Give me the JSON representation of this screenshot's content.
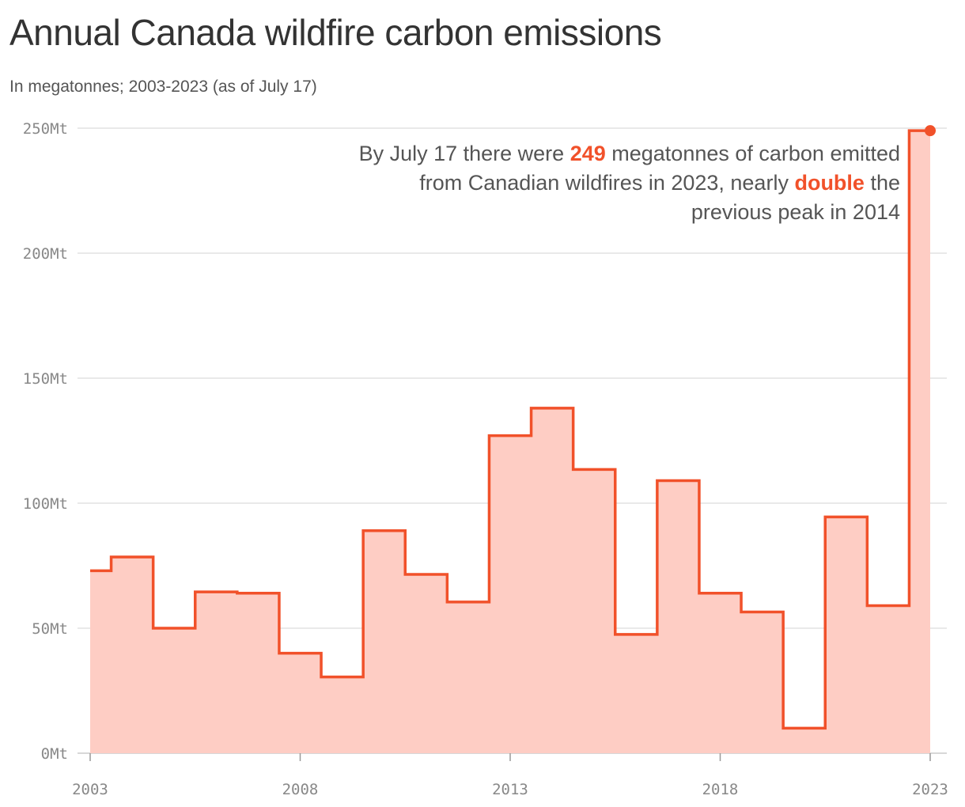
{
  "title": "Annual Canada wildfire carbon emissions",
  "subtitle": "In megatonnes; 2003-2023 (as of July 17)",
  "annotation": {
    "part1": "By July 17 there were ",
    "highlight1": "249",
    "part2": " megatonnes of carbon emitted from Canadian wildfires in 2023, nearly ",
    "highlight2": "double",
    "part3": " the previous peak in 2014"
  },
  "colors": {
    "line": "#f1512a",
    "fill": "#fecdc4",
    "grid": "#e2e2e2",
    "axis": "#cccccc"
  },
  "chart_data": {
    "type": "area",
    "step": true,
    "x": [
      2003,
      2004,
      2005,
      2006,
      2007,
      2008,
      2009,
      2010,
      2011,
      2012,
      2013,
      2014,
      2015,
      2016,
      2017,
      2018,
      2019,
      2020,
      2021,
      2022,
      2023
    ],
    "series": [
      {
        "values": [
          73,
          78.5,
          50,
          64.5,
          64,
          40,
          30.5,
          89,
          71.5,
          60.5,
          127,
          138,
          113.5,
          47.5,
          109,
          64,
          56.5,
          10,
          94.5,
          59,
          249
        ]
      }
    ],
    "xticks": [
      2003,
      2008,
      2013,
      2018,
      2023
    ],
    "xtick_labels": [
      "2003",
      "2008",
      "2013",
      "2018",
      "2023"
    ],
    "yticks": [
      0,
      50,
      100,
      150,
      200,
      250
    ],
    "ytick_labels": [
      "0Mt",
      "50Mt",
      "100Mt",
      "150Mt",
      "200Mt",
      "250Mt"
    ],
    "xlim": [
      2003,
      2023
    ],
    "ylim": [
      0,
      250
    ],
    "grid": true,
    "xlabel": "",
    "ylabel": ""
  }
}
